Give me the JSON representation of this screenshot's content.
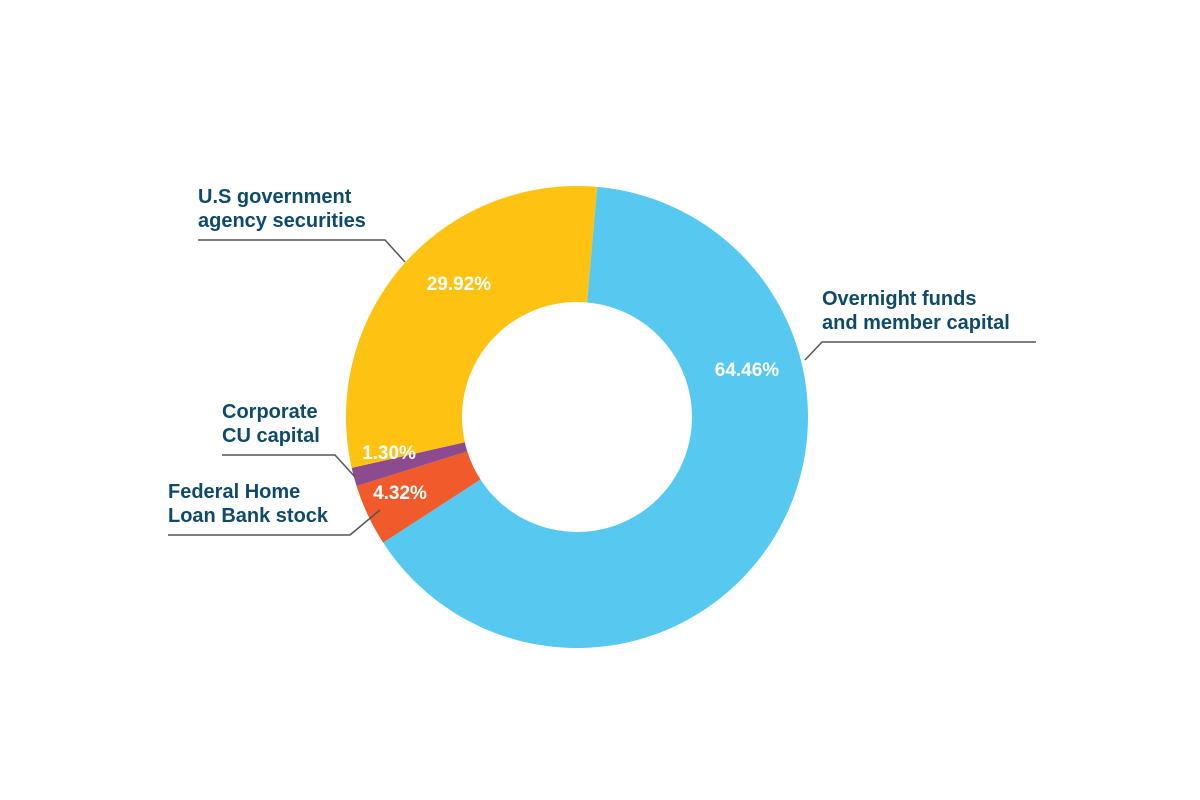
{
  "chart_data": {
    "type": "donut",
    "categories": [
      "Overnight funds\nand member capital",
      "Federal Home\nLoan Bank stock",
      "Corporate\nCU capital",
      "U.S government\nagency securities"
    ],
    "values": [
      64.46,
      4.32,
      1.3,
      29.92
    ],
    "value_labels": [
      "64.46%",
      "4.32%",
      "1.30%",
      "29.92%"
    ],
    "colors": [
      "#57c9f1",
      "#f15a2b",
      "#8c4a8f",
      "#fec212"
    ]
  }
}
